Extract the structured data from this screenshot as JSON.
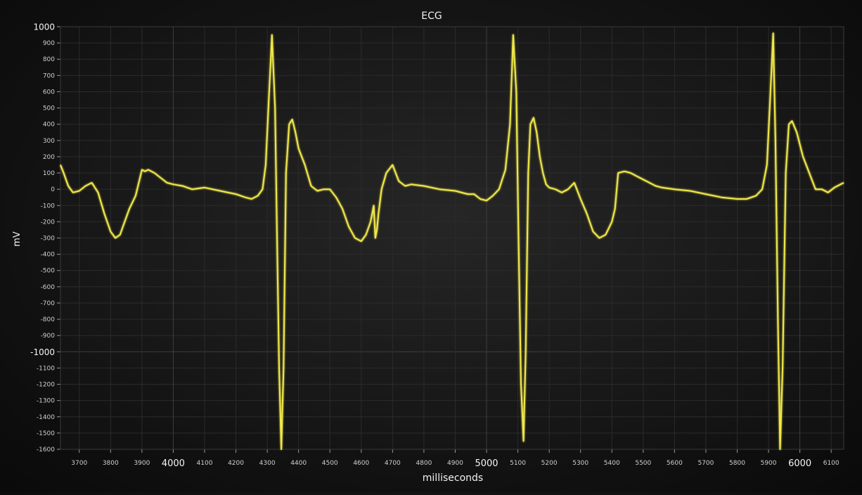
{
  "chart_data": {
    "type": "line",
    "title": "ECG",
    "xlabel": "milliseconds",
    "ylabel": "mV",
    "xlim": [
      3640,
      6140
    ],
    "ylim": [
      -1600,
      1000
    ],
    "grid": true,
    "x_ticks_minor": [
      3700,
      3800,
      3900,
      4100,
      4200,
      4300,
      4400,
      4500,
      4600,
      4700,
      4800,
      4900,
      5100,
      5200,
      5300,
      5400,
      5500,
      5600,
      5700,
      5800,
      5900,
      6100
    ],
    "x_ticks_major": [
      4000,
      5000,
      6000
    ],
    "y_ticks_minor": [
      900,
      800,
      700,
      600,
      500,
      400,
      300,
      200,
      100,
      0,
      -100,
      -200,
      -300,
      -400,
      -500,
      -600,
      -700,
      -800,
      -900,
      -1100,
      -1200,
      -1300,
      -1400,
      -1500,
      -1600
    ],
    "y_ticks_major": [
      1000,
      -1000
    ],
    "line_color": "#f0e84a",
    "series": [
      {
        "name": "",
        "color": "#f0e84a",
        "x": [
          3640,
          3650,
          3665,
          3680,
          3700,
          3720,
          3740,
          3760,
          3780,
          3800,
          3815,
          3830,
          3845,
          3860,
          3880,
          3900,
          3910,
          3920,
          3940,
          3960,
          3980,
          4000,
          4030,
          4060,
          4100,
          4150,
          4200,
          4230,
          4250,
          4270,
          4285,
          4295,
          4305,
          4315,
          4325,
          4332,
          4338,
          4345,
          4352,
          4360,
          4370,
          4380,
          4390,
          4400,
          4420,
          4440,
          4460,
          4480,
          4500,
          4520,
          4540,
          4560,
          4580,
          4600,
          4615,
          4630,
          4640,
          4645,
          4650,
          4655,
          4665,
          4680,
          4700,
          4720,
          4740,
          4760,
          4800,
          4850,
          4900,
          4940,
          4960,
          4980,
          5000,
          5020,
          5040,
          5060,
          5075,
          5085,
          5095,
          5102,
          5110,
          5118,
          5125,
          5133,
          5140,
          5150,
          5160,
          5170,
          5180,
          5190,
          5200,
          5220,
          5240,
          5260,
          5280,
          5300,
          5320,
          5340,
          5360,
          5380,
          5400,
          5410,
          5420,
          5440,
          5460,
          5480,
          5500,
          5520,
          5540,
          5560,
          5600,
          5650,
          5700,
          5750,
          5800,
          5830,
          5860,
          5880,
          5895,
          5905,
          5915,
          5922,
          5930,
          5937,
          5945,
          5955,
          5965,
          5975,
          5990,
          6010,
          6030,
          6050,
          6070,
          6090,
          6110,
          6140
        ],
        "y": [
          150,
          100,
          20,
          -20,
          -10,
          20,
          40,
          -20,
          -150,
          -260,
          -300,
          -280,
          -200,
          -120,
          -40,
          120,
          110,
          120,
          100,
          70,
          40,
          30,
          20,
          0,
          10,
          -10,
          -30,
          -50,
          -60,
          -40,
          0,
          150,
          550,
          950,
          500,
          -400,
          -1100,
          -1600,
          -1100,
          100,
          400,
          430,
          350,
          250,
          150,
          20,
          -10,
          0,
          0,
          -50,
          -120,
          -230,
          -300,
          -320,
          -280,
          -200,
          -100,
          -300,
          -250,
          -150,
          0,
          100,
          150,
          50,
          20,
          30,
          20,
          0,
          -10,
          -30,
          -30,
          -60,
          -70,
          -40,
          0,
          120,
          400,
          950,
          600,
          -300,
          -1200,
          -1550,
          -1000,
          100,
          400,
          440,
          350,
          200,
          100,
          30,
          10,
          0,
          -20,
          0,
          40,
          -60,
          -150,
          -260,
          -300,
          -280,
          -200,
          -120,
          100,
          110,
          100,
          80,
          60,
          40,
          20,
          10,
          0,
          -10,
          -30,
          -50,
          -60,
          -60,
          -40,
          0,
          150,
          550,
          960,
          300,
          -800,
          -1600,
          -1100,
          100,
          400,
          420,
          350,
          200,
          100,
          0,
          0,
          -20,
          10,
          40
        ]
      }
    ]
  }
}
